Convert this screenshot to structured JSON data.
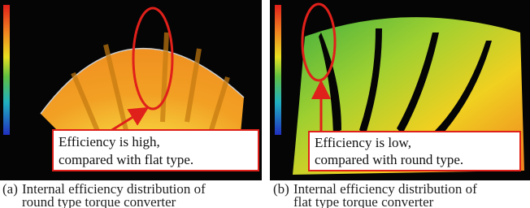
{
  "panels": [
    {
      "callout": [
        "Efficiency is high,",
        "compared with flat type."
      ],
      "caption": {
        "label": "(a)",
        "lines": [
          "Internal efficiency distribution of",
          "round type torque converter"
        ]
      }
    },
    {
      "callout": [
        "Efficiency is low,",
        "compared with round type."
      ],
      "caption": {
        "label": "(b)",
        "lines": [
          "Internal efficiency distribution of",
          "flat type torque converter"
        ]
      }
    }
  ]
}
